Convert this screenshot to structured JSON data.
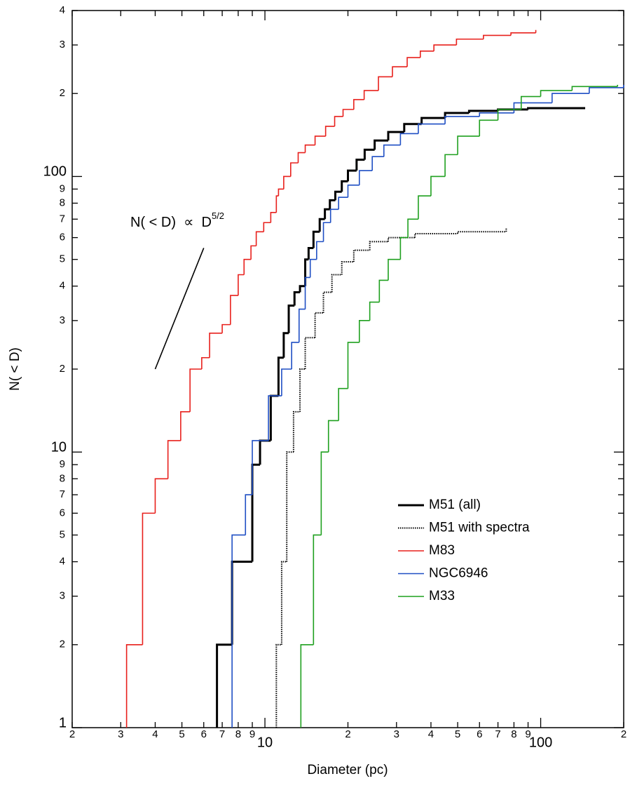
{
  "chart_data": {
    "type": "step",
    "xlabel": "Diameter (pc)",
    "ylabel": "N( < D)",
    "xscale": "log",
    "yscale": "log",
    "xlim": [
      2,
      200
    ],
    "ylim": [
      1,
      400
    ],
    "xticks": [
      2,
      3,
      4,
      5,
      6,
      7,
      8,
      9,
      10,
      {
        "value": 20,
        "label": "2"
      },
      {
        "value": 30,
        "label": "3"
      },
      {
        "value": 40,
        "label": "4"
      },
      {
        "value": 50,
        "label": "5"
      },
      {
        "value": 60,
        "label": "6"
      },
      {
        "value": 70,
        "label": "7"
      },
      {
        "value": 80,
        "label": "8"
      },
      {
        "value": 90,
        "label": "9"
      },
      100,
      {
        "value": 200,
        "label": "2"
      }
    ],
    "yticks": [
      1,
      2,
      3,
      4,
      5,
      6,
      7,
      8,
      9,
      10,
      {
        "value": 20,
        "label": "2"
      },
      {
        "value": 30,
        "label": "3"
      },
      {
        "value": 40,
        "label": "4"
      },
      {
        "value": 50,
        "label": "5"
      },
      {
        "value": 60,
        "label": "6"
      },
      {
        "value": 70,
        "label": "7"
      },
      {
        "value": 80,
        "label": "8"
      },
      {
        "value": 90,
        "label": "9"
      },
      100,
      {
        "value": 200,
        "label": "2"
      },
      {
        "value": 300,
        "label": "3"
      },
      {
        "value": 400,
        "label": "4"
      }
    ],
    "legend": "lower right",
    "series": [
      {
        "name": "M51 (all)",
        "color": "#000000",
        "line_width": 3,
        "dash": "solid",
        "x": [
          6.7,
          7.6,
          9.0,
          9.6,
          10.5,
          11.2,
          11.7,
          12.2,
          12.8,
          13.4,
          14.0,
          14.4,
          15,
          15.8,
          16.5,
          17.2,
          18,
          19,
          20,
          21.5,
          23,
          25,
          28,
          32,
          37,
          45,
          55,
          70,
          90,
          145
        ],
        "values": [
          2,
          4,
          9,
          11,
          16,
          22,
          27,
          34,
          38,
          40,
          50,
          55,
          63,
          70,
          76,
          82,
          88,
          96,
          105,
          115,
          125,
          135,
          145,
          155,
          163,
          170,
          173,
          175,
          177,
          177
        ]
      },
      {
        "name": "M51 with spectra",
        "color": "#000000",
        "line_width": 2,
        "dash": "dotted",
        "x": [
          11,
          11.5,
          12,
          12.7,
          13.4,
          14,
          15.2,
          16.3,
          17.5,
          19,
          21,
          24,
          28,
          35,
          50,
          75
        ],
        "values": [
          2,
          4,
          10,
          14,
          20,
          26,
          32,
          38,
          44,
          49,
          54,
          58,
          60,
          62,
          63,
          65
        ]
      },
      {
        "name": "M83",
        "color": "#e8201c",
        "line_width": 1.6,
        "dash": "solid",
        "x": [
          3.15,
          3.6,
          4.0,
          4.45,
          4.95,
          5.35,
          5.9,
          6.3,
          7.0,
          7.5,
          8.0,
          8.4,
          8.9,
          9.3,
          9.9,
          10.5,
          11,
          11.2,
          11.7,
          12.4,
          13.2,
          14.0,
          15.2,
          16.6,
          17.9,
          19.2,
          21,
          22.9,
          25.8,
          29,
          32.8,
          36.6,
          41,
          49.5,
          62,
          78,
          96
        ],
        "values": [
          2,
          6,
          8,
          11,
          14,
          20,
          22,
          27,
          29,
          37,
          44,
          50,
          56,
          63,
          68,
          74,
          85,
          90,
          100,
          112,
          122,
          130,
          140,
          152,
          165,
          175,
          190,
          205,
          230,
          250,
          270,
          285,
          300,
          315,
          325,
          332,
          340
        ]
      },
      {
        "name": "NGC6946",
        "color": "#1f4fc4",
        "line_width": 1.6,
        "dash": "solid",
        "x": [
          7.6,
          8.5,
          9.0,
          10.3,
          11.5,
          12.5,
          13.3,
          14.0,
          14.6,
          15.4,
          16.3,
          17.3,
          18.5,
          20,
          22,
          24.5,
          27,
          31,
          36,
          45,
          60,
          80,
          110,
          150,
          200
        ],
        "values": [
          5,
          7,
          11,
          16,
          20,
          25,
          33,
          43,
          50,
          58,
          68,
          76,
          84,
          93,
          105,
          118,
          130,
          143,
          155,
          165,
          170,
          185,
          200,
          210,
          215
        ]
      },
      {
        "name": "M33",
        "color": "#1fa01f",
        "line_width": 1.6,
        "dash": "solid",
        "x": [
          13.5,
          15,
          16,
          17,
          18.5,
          20,
          22,
          24,
          26,
          28,
          31,
          33,
          36,
          40,
          45,
          50,
          60,
          70,
          85,
          100,
          130,
          190
        ],
        "values": [
          2,
          5,
          10,
          13,
          17,
          25,
          30,
          35,
          42,
          50,
          60,
          70,
          85,
          100,
          120,
          140,
          160,
          175,
          195,
          205,
          212,
          215
        ]
      }
    ],
    "annotation": {
      "text": "N( < D)  ∝  D",
      "superscript": "5/2",
      "line_x": [
        4,
        6
      ],
      "line_y": [
        20,
        55
      ]
    }
  }
}
